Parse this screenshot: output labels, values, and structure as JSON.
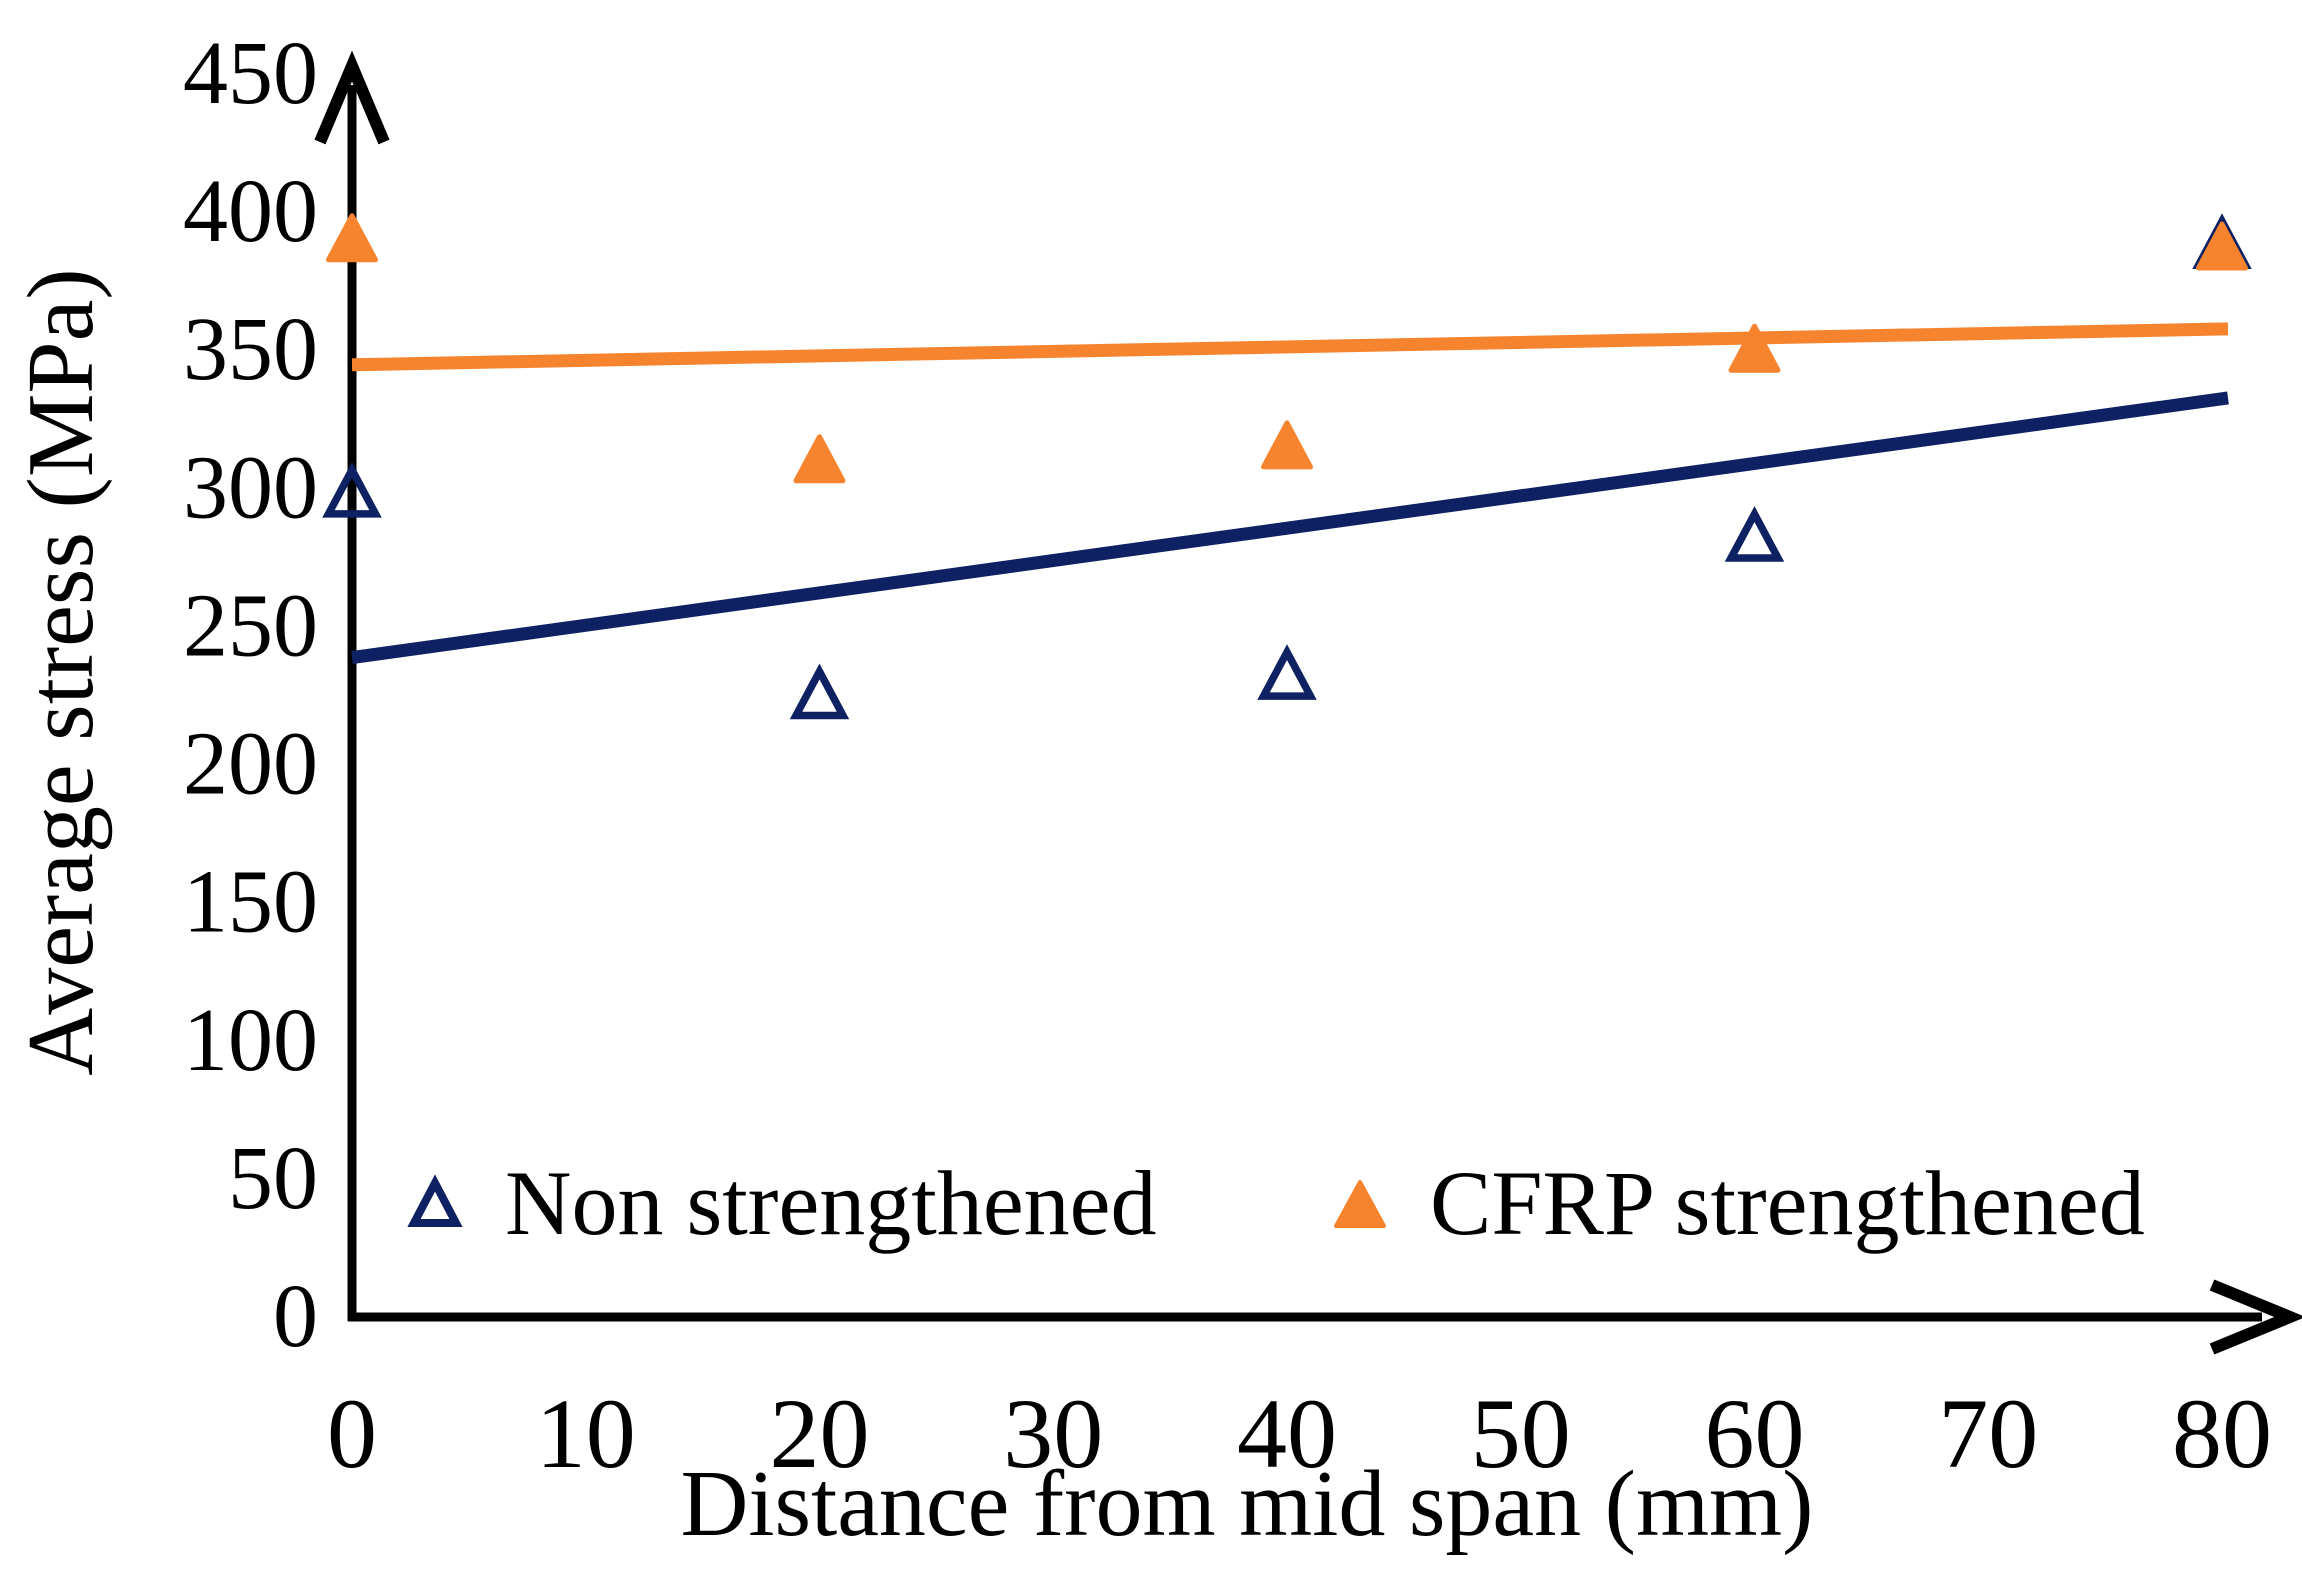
{
  "chart_data": {
    "type": "scatter",
    "title": "",
    "xlabel": "Distance from mid span (mm)",
    "ylabel": "Average stress (MPa)",
    "xlim": [
      0,
      80
    ],
    "ylim": [
      0,
      450
    ],
    "x_tick_step": 10,
    "y_tick_step": 50,
    "x_ticks": [
      "0",
      "10",
      "20",
      "30",
      "40",
      "50",
      "60",
      "70",
      "80"
    ],
    "y_ticks": [
      "0",
      "50",
      "100",
      "150",
      "200",
      "250",
      "300",
      "350",
      "400",
      "450"
    ],
    "grid": false,
    "legend_position": "inside-bottom",
    "axis_color": "#000000",
    "x": [
      0,
      20,
      40,
      60,
      80
    ],
    "series": [
      {
        "name": "Non strengthened",
        "marker": "open-triangle",
        "color": "#0E2163",
        "values": [
          298,
          225,
          232,
          282,
          388
        ],
        "trendline": {
          "y_at_x0": 238,
          "y_at_x80": 332
        }
      },
      {
        "name": "CFRP strengthened",
        "marker": "filled-triangle",
        "color": "#F6842F",
        "values": [
          390,
          310,
          315,
          350,
          387
        ],
        "trendline": {
          "y_at_x0": 344,
          "y_at_x80": 357
        }
      }
    ]
  }
}
